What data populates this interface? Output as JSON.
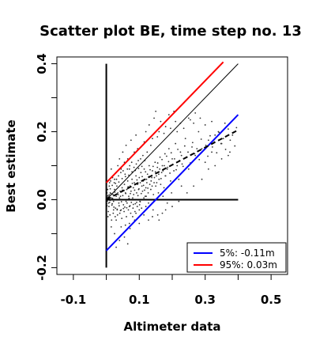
{
  "chart_data": {
    "type": "scatter",
    "title": "Scatter plot BE, time step no. 13",
    "xlabel": "Altimeter data",
    "ylabel": "Best estimate",
    "xlim": [
      -0.15,
      0.55
    ],
    "ylim": [
      -0.22,
      0.42
    ],
    "xticks": [
      -0.1,
      0.1,
      0.3,
      0.5
    ],
    "xtick_labels": [
      "-0.1",
      "0.1",
      "0.3",
      "0.5"
    ],
    "xticks_minor": [
      0.0,
      0.2,
      0.4
    ],
    "yticks": [
      -0.2,
      0.0,
      0.2,
      0.4
    ],
    "ytick_labels": [
      "-0.2",
      "0.0",
      "0.2",
      "0.4"
    ],
    "yticks_minor": [
      -0.1,
      0.1,
      0.3
    ],
    "grid": false,
    "legend_position": "bottom-right",
    "legend": [
      {
        "label": "5%: -0.11m",
        "color": "#0000ff"
      },
      {
        "label": "95%:  0.03m",
        "color": "#ff0000"
      }
    ],
    "reference_lines": [
      {
        "name": "vertical-zero",
        "x": [
          0.0,
          0.0
        ],
        "y": [
          -0.2,
          0.4
        ],
        "color": "#000000",
        "style": "solid"
      },
      {
        "name": "horizontal-zero",
        "x": [
          0.0,
          0.4
        ],
        "y": [
          0.0,
          0.0
        ],
        "color": "#000000",
        "style": "solid"
      },
      {
        "name": "identity",
        "x": [
          0.0,
          0.4
        ],
        "y": [
          0.0,
          0.4
        ],
        "color": "#000000",
        "style": "solid"
      },
      {
        "name": "5-percent",
        "x": [
          0.0,
          0.4
        ],
        "y": [
          -0.15,
          0.25
        ],
        "color": "#0000ff",
        "style": "solid"
      },
      {
        "name": "95-percent",
        "x": [
          0.0,
          0.355
        ],
        "y": [
          0.05,
          0.405
        ],
        "color": "#ff0000",
        "style": "solid"
      },
      {
        "name": "fit",
        "x": [
          0.0,
          0.4
        ],
        "y": [
          0.0,
          0.205
        ],
        "color": "#000000",
        "style": "dashed"
      }
    ],
    "points": [
      [
        0.005,
        0.012
      ],
      [
        0.01,
        -0.008
      ],
      [
        0.012,
        0.02
      ],
      [
        0.015,
        0.005
      ],
      [
        0.008,
        -0.02
      ],
      [
        0.02,
        0.015
      ],
      [
        0.018,
        -0.012
      ],
      [
        0.025,
        0.03
      ],
      [
        0.022,
        -0.005
      ],
      [
        0.03,
        0.01
      ],
      [
        0.028,
        -0.025
      ],
      [
        0.035,
        0.02
      ],
      [
        0.032,
        0.04
      ],
      [
        0.038,
        -0.01
      ],
      [
        0.04,
        0.005
      ],
      [
        0.042,
        0.025
      ],
      [
        0.045,
        -0.03
      ],
      [
        0.048,
        0.035
      ],
      [
        0.05,
        0.012
      ],
      [
        0.052,
        -0.015
      ],
      [
        0.055,
        0.045
      ],
      [
        0.058,
        0.02
      ],
      [
        0.06,
        -0.005
      ],
      [
        0.062,
        0.03
      ],
      [
        0.065,
        0.055
      ],
      [
        0.068,
        0.01
      ],
      [
        0.07,
        -0.02
      ],
      [
        0.072,
        0.04
      ],
      [
        0.075,
        0.025
      ],
      [
        0.078,
        0.06
      ],
      [
        0.08,
        0.005
      ],
      [
        0.082,
        0.035
      ],
      [
        0.085,
        0.05
      ],
      [
        0.088,
        -0.012
      ],
      [
        0.09,
        0.07
      ],
      [
        0.092,
        0.02
      ],
      [
        0.095,
        0.045
      ],
      [
        0.098,
        0.03
      ],
      [
        0.1,
        0.065
      ],
      [
        0.102,
        -0.005
      ],
      [
        0.105,
        0.08
      ],
      [
        0.108,
        0.04
      ],
      [
        0.11,
        0.025
      ],
      [
        0.112,
        0.055
      ],
      [
        0.115,
        0.09
      ],
      [
        0.118,
        0.01
      ],
      [
        0.12,
        0.035
      ],
      [
        0.122,
        0.06
      ],
      [
        0.125,
        0.075
      ],
      [
        0.128,
        -0.01
      ],
      [
        0.13,
        0.1
      ],
      [
        0.132,
        0.045
      ],
      [
        0.135,
        0.03
      ],
      [
        0.138,
        0.065
      ],
      [
        0.14,
        0.085
      ],
      [
        0.143,
        0.015
      ],
      [
        0.145,
        0.05
      ],
      [
        0.148,
        0.11
      ],
      [
        0.15,
        0.04
      ],
      [
        0.152,
        0.07
      ],
      [
        0.155,
        0.095
      ],
      [
        0.158,
        0.02
      ],
      [
        0.16,
        0.06
      ],
      [
        0.163,
        0.125
      ],
      [
        0.165,
        0.045
      ],
      [
        0.168,
        0.08
      ],
      [
        0.17,
        0.1
      ],
      [
        0.175,
        0.035
      ],
      [
        0.178,
        0.135
      ],
      [
        0.18,
        0.07
      ],
      [
        0.185,
        0.09
      ],
      [
        0.19,
        0.15
      ],
      [
        0.195,
        0.055
      ],
      [
        0.2,
        0.12
      ],
      [
        0.205,
        0.085
      ],
      [
        0.21,
        0.165
      ],
      [
        0.215,
        0.1
      ],
      [
        0.22,
        0.06
      ],
      [
        0.225,
        0.14
      ],
      [
        0.23,
        0.105
      ],
      [
        0.24,
        0.18
      ],
      [
        0.245,
        0.125
      ],
      [
        0.25,
        0.09
      ],
      [
        0.26,
        0.155
      ],
      [
        0.27,
        0.13
      ],
      [
        0.28,
        0.2
      ],
      [
        0.29,
        0.15
      ],
      [
        0.3,
        0.11
      ],
      [
        0.31,
        0.175
      ],
      [
        0.32,
        0.14
      ],
      [
        0.33,
        0.19
      ],
      [
        0.35,
        0.165
      ],
      [
        0.37,
        0.13
      ],
      [
        0.06,
        0.16
      ],
      [
        0.05,
        0.14
      ],
      [
        0.075,
        0.175
      ],
      [
        0.04,
        0.12
      ],
      [
        0.09,
        0.19
      ],
      [
        0.12,
        0.2
      ],
      [
        0.11,
        0.16
      ],
      [
        0.14,
        0.18
      ],
      [
        0.13,
        0.22
      ],
      [
        0.16,
        0.2
      ],
      [
        0.145,
        0.24
      ],
      [
        0.18,
        0.215
      ],
      [
        0.21,
        0.23
      ],
      [
        0.19,
        0.25
      ],
      [
        0.25,
        0.24
      ],
      [
        0.27,
        0.255
      ],
      [
        0.15,
        0.26
      ],
      [
        0.03,
        -0.06
      ],
      [
        0.045,
        -0.08
      ],
      [
        0.06,
        -0.09
      ],
      [
        0.025,
        -0.1
      ],
      [
        0.07,
        -0.07
      ],
      [
        0.04,
        -0.12
      ],
      [
        0.055,
        -0.11
      ],
      [
        0.08,
        -0.05
      ],
      [
        0.03,
        -0.14
      ],
      [
        0.09,
        -0.04
      ],
      [
        0.1,
        -0.03
      ],
      [
        0.065,
        -0.13
      ],
      [
        0.12,
        -0.02
      ],
      [
        0.14,
        -0.05
      ],
      [
        0.16,
        -0.06
      ],
      [
        0.18,
        -0.03
      ],
      [
        0.2,
        -0.02
      ],
      [
        0.17,
        -0.04
      ],
      [
        0.005,
        -0.05
      ],
      [
        0.015,
        -0.08
      ],
      [
        0.01,
        0.05
      ],
      [
        0.02,
        0.07
      ],
      [
        0.015,
        0.09
      ],
      [
        0.025,
        0.06
      ],
      [
        0.03,
        0.08
      ],
      [
        0.035,
        0.1
      ],
      [
        0.045,
        0.09
      ],
      [
        0.055,
        0.11
      ],
      [
        0.065,
        0.12
      ],
      [
        0.07,
        0.09
      ],
      [
        0.004,
        0.03
      ],
      [
        0.006,
        -0.035
      ],
      [
        0.009,
        0.04
      ],
      [
        0.011,
        -0.045
      ],
      [
        0.013,
        0.055
      ],
      [
        0.016,
        -0.06
      ],
      [
        0.019,
        0.065
      ],
      [
        0.021,
        -0.04
      ],
      [
        0.024,
        0.05
      ],
      [
        0.027,
        -0.05
      ],
      [
        0.031,
        0.06
      ],
      [
        0.034,
        -0.045
      ],
      [
        0.037,
        0.07
      ],
      [
        0.041,
        -0.04
      ],
      [
        0.044,
        0.08
      ],
      [
        0.047,
        -0.055
      ],
      [
        0.051,
        0.085
      ],
      [
        0.054,
        -0.035
      ],
      [
        0.057,
        0.075
      ],
      [
        0.061,
        -0.05
      ],
      [
        0.064,
        0.09
      ],
      [
        0.067,
        -0.03
      ],
      [
        0.071,
        0.1
      ],
      [
        0.074,
        -0.04
      ],
      [
        0.077,
        0.11
      ],
      [
        0.081,
        -0.025
      ],
      [
        0.084,
        0.095
      ],
      [
        0.087,
        -0.035
      ],
      [
        0.091,
        0.105
      ],
      [
        0.094,
        -0.02
      ],
      [
        0.097,
        0.115
      ],
      [
        0.101,
        -0.015
      ],
      [
        0.104,
        0.12
      ],
      [
        0.107,
        -0.025
      ],
      [
        0.111,
        0.13
      ],
      [
        0.114,
        0.005
      ],
      [
        0.117,
        0.115
      ],
      [
        0.121,
        0.01
      ],
      [
        0.124,
        0.14
      ],
      [
        0.127,
        0.02
      ],
      [
        0.002,
        0.002
      ],
      [
        0.003,
        -0.004
      ],
      [
        0.006,
        0.008
      ],
      [
        0.007,
        -0.01
      ],
      [
        0.009,
        0.014
      ],
      [
        0.011,
        -0.002
      ],
      [
        0.014,
        0.018
      ],
      [
        0.017,
        -0.016
      ],
      [
        0.019,
        0.004
      ],
      [
        0.023,
        -0.022
      ],
      [
        0.026,
        0.022
      ],
      [
        0.029,
        0.0
      ],
      [
        0.033,
        -0.03
      ],
      [
        0.036,
        0.015
      ],
      [
        0.039,
        -0.018
      ],
      [
        0.043,
        0.01
      ],
      [
        0.046,
        -0.006
      ],
      [
        0.049,
        0.028
      ],
      [
        0.053,
        0.0
      ],
      [
        0.056,
        -0.022
      ],
      [
        0.059,
        0.018
      ],
      [
        0.063,
        -0.01
      ],
      [
        0.066,
        0.038
      ],
      [
        0.069,
        0.004
      ],
      [
        0.073,
        0.018
      ],
      [
        0.076,
        -0.008
      ],
      [
        0.079,
        0.048
      ],
      [
        0.083,
        0.015
      ],
      [
        0.086,
        0.028
      ],
      [
        0.089,
        0.0
      ],
      [
        0.093,
        0.058
      ],
      [
        0.096,
        0.012
      ],
      [
        0.099,
        0.032
      ],
      [
        0.103,
        0.05
      ],
      [
        0.106,
        0.018
      ],
      [
        0.109,
        0.068
      ],
      [
        0.113,
        0.042
      ],
      [
        0.116,
        0.028
      ],
      [
        0.119,
        0.082
      ],
      [
        0.123,
        0.05
      ],
      [
        0.126,
        0.034
      ],
      [
        0.129,
        0.068
      ],
      [
        0.133,
        0.088
      ],
      [
        0.136,
        0.055
      ],
      [
        0.139,
        0.04
      ],
      [
        0.142,
        0.098
      ],
      [
        0.146,
        0.065
      ],
      [
        0.149,
        0.082
      ],
      [
        0.153,
        0.05
      ],
      [
        0.156,
        0.108
      ],
      [
        0.159,
        0.075
      ],
      [
        0.162,
        0.09
      ],
      [
        0.166,
        0.062
      ],
      [
        0.169,
        0.118
      ],
      [
        0.172,
        0.085
      ],
      [
        0.176,
        0.1
      ],
      [
        0.179,
        0.07
      ],
      [
        0.183,
        0.128
      ],
      [
        0.186,
        0.095
      ],
      [
        0.189,
        0.112
      ],
      [
        0.193,
        0.078
      ],
      [
        0.197,
        0.138
      ],
      [
        0.202,
        0.104
      ],
      [
        0.207,
        0.12
      ],
      [
        0.212,
        0.088
      ],
      [
        0.217,
        0.148
      ],
      [
        0.222,
        0.115
      ],
      [
        0.228,
        0.13
      ],
      [
        0.233,
        0.098
      ],
      [
        0.238,
        0.158
      ],
      [
        0.243,
        0.125
      ],
      [
        0.248,
        0.14
      ],
      [
        0.255,
        0.108
      ],
      [
        0.262,
        0.168
      ],
      [
        0.268,
        0.135
      ],
      [
        0.275,
        0.15
      ],
      [
        0.282,
        0.118
      ],
      [
        0.288,
        0.178
      ],
      [
        0.295,
        0.145
      ],
      [
        0.302,
        0.16
      ],
      [
        0.308,
        0.128
      ],
      [
        0.315,
        0.188
      ],
      [
        0.322,
        0.155
      ],
      [
        0.328,
        0.17
      ],
      [
        0.335,
        0.138
      ],
      [
        0.342,
        0.198
      ],
      [
        0.348,
        0.165
      ],
      [
        0.355,
        0.18
      ],
      [
        0.362,
        0.148
      ],
      [
        0.37,
        0.208
      ],
      [
        0.376,
        0.175
      ],
      [
        0.383,
        0.19
      ],
      [
        0.39,
        0.158
      ],
      [
        0.395,
        0.212
      ],
      [
        0.0,
        0.0
      ],
      [
        0.001,
        0.01
      ],
      [
        0.001,
        -0.012
      ],
      [
        0.002,
        0.02
      ],
      [
        0.002,
        -0.018
      ],
      [
        0.004,
        0.006
      ],
      [
        0.012,
        0.032
      ],
      [
        0.018,
        0.042
      ],
      [
        0.022,
        -0.03
      ],
      [
        0.028,
        0.048
      ],
      [
        0.033,
        -0.028
      ],
      [
        0.038,
        0.052
      ],
      [
        0.043,
        -0.032
      ],
      [
        0.048,
        0.062
      ],
      [
        0.052,
        -0.026
      ],
      [
        0.058,
        0.068
      ],
      [
        0.062,
        -0.024
      ],
      [
        0.068,
        0.072
      ],
      [
        0.072,
        -0.018
      ],
      [
        0.078,
        0.082
      ],
      [
        0.082,
        -0.014
      ],
      [
        0.088,
        0.086
      ],
      [
        0.092,
        -0.008
      ],
      [
        0.098,
        0.092
      ],
      [
        0.103,
        -0.006
      ],
      [
        0.108,
        0.098
      ],
      [
        0.085,
        0.14
      ],
      [
        0.095,
        0.15
      ],
      [
        0.105,
        0.155
      ],
      [
        0.115,
        0.17
      ],
      [
        0.135,
        0.16
      ],
      [
        0.155,
        0.185
      ],
      [
        0.165,
        0.23
      ],
      [
        0.175,
        0.195
      ],
      [
        0.195,
        0.21
      ],
      [
        0.205,
        0.26
      ],
      [
        0.215,
        0.2
      ],
      [
        0.225,
        0.225
      ],
      [
        0.235,
        0.21
      ],
      [
        0.255,
        0.235
      ],
      [
        0.265,
        0.225
      ],
      [
        0.285,
        0.24
      ],
      [
        0.3,
        0.22
      ],
      [
        0.32,
        0.23
      ],
      [
        0.34,
        0.2
      ],
      [
        0.36,
        0.225
      ],
      [
        0.058,
        -0.075
      ],
      [
        0.072,
        -0.085
      ],
      [
        0.086,
        -0.06
      ],
      [
        0.1,
        -0.07
      ],
      [
        0.114,
        -0.045
      ],
      [
        0.128,
        -0.06
      ],
      [
        0.142,
        -0.03
      ],
      [
        0.156,
        -0.045
      ],
      [
        0.185,
        -0.01
      ],
      [
        0.22,
        -0.005
      ],
      [
        0.245,
        0.02
      ],
      [
        0.265,
        0.04
      ],
      [
        0.29,
        0.06
      ],
      [
        0.31,
        0.09
      ],
      [
        0.33,
        0.1
      ],
      [
        0.35,
        0.12
      ],
      [
        0.375,
        0.14
      ],
      [
        0.228,
        0.04
      ],
      [
        0.198,
        0.02
      ],
      [
        0.172,
        0.01
      ]
    ]
  }
}
